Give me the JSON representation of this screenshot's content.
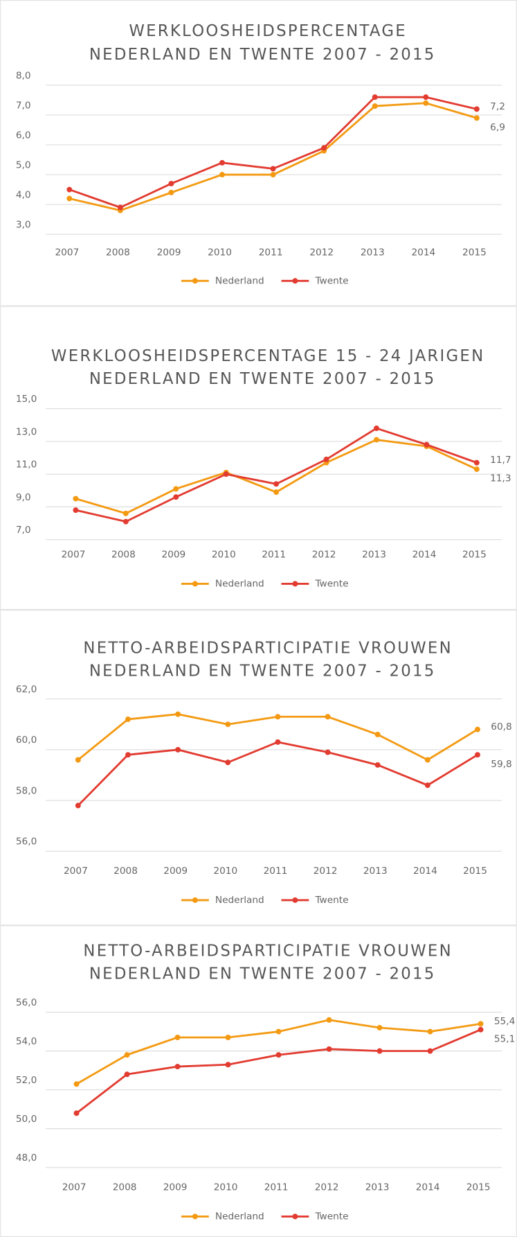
{
  "chart_data": [
    {
      "type": "line",
      "title": "WERKLOOSHEIDSPERCENTAGE",
      "subtitle": "NEDERLAND EN TWENTE 2007 - 2015",
      "categories": [
        "2007",
        "2008",
        "2009",
        "2010",
        "2011",
        "2012",
        "2013",
        "2014",
        "2015"
      ],
      "ylim": [
        3,
        8
      ],
      "yticks": [
        {
          "value": 3,
          "label": "3,0"
        },
        {
          "value": 4,
          "label": "4,0"
        },
        {
          "value": 5,
          "label": "5,0"
        },
        {
          "value": 6,
          "label": "6,0"
        },
        {
          "value": 7,
          "label": "7,0"
        },
        {
          "value": 8,
          "label": "8,0"
        }
      ],
      "grid": true,
      "legend": "bottom",
      "series": [
        {
          "name": "Nederland",
          "color": "#f39a12",
          "values": [
            4.2,
            3.8,
            4.4,
            5.0,
            5.0,
            5.8,
            7.3,
            7.4,
            6.9
          ],
          "value_labels": [
            null,
            null,
            null,
            null,
            null,
            null,
            null,
            null,
            "6,9"
          ]
        },
        {
          "name": "Twente",
          "color": "#e23b30",
          "values": [
            4.5,
            3.9,
            4.7,
            5.4,
            5.2,
            5.9,
            7.6,
            7.6,
            7.2
          ],
          "value_labels": [
            null,
            null,
            null,
            null,
            null,
            null,
            null,
            null,
            "7,2"
          ]
        }
      ]
    },
    {
      "type": "line",
      "title": "WERKLOOSHEIDSPERCENTAGE 15 - 24 JARIGEN",
      "subtitle": "NEDERLAND EN TWENTE 2007 - 2015",
      "categories": [
        "2007",
        "2008",
        "2009",
        "2010",
        "2011",
        "2012",
        "2013",
        "2014",
        "2015"
      ],
      "ylim": [
        7,
        15
      ],
      "yticks": [
        {
          "value": 7,
          "label": "7,0"
        },
        {
          "value": 9,
          "label": "9,0"
        },
        {
          "value": 11,
          "label": "11,0"
        },
        {
          "value": 13,
          "label": "13,0"
        },
        {
          "value": 15,
          "label": "15,0"
        }
      ],
      "grid": true,
      "legend": "bottom",
      "series": [
        {
          "name": "Nederland",
          "color": "#f39a12",
          "values": [
            9.5,
            8.6,
            10.1,
            11.1,
            9.9,
            11.7,
            13.1,
            12.7,
            11.3
          ],
          "value_labels": [
            null,
            null,
            null,
            null,
            null,
            null,
            null,
            null,
            "11,3"
          ]
        },
        {
          "name": "Twente",
          "color": "#e23b30",
          "values": [
            8.8,
            8.1,
            9.6,
            11.0,
            10.4,
            11.9,
            13.8,
            12.8,
            11.7
          ],
          "value_labels": [
            null,
            null,
            null,
            null,
            null,
            null,
            null,
            null,
            "11,7"
          ]
        }
      ]
    },
    {
      "type": "line",
      "title": "NETTO-ARBEIDSPARTICIPATIE VROUWEN",
      "subtitle": "NEDERLAND EN TWENTE 2007 - 2015",
      "categories": [
        "2007",
        "2008",
        "2009",
        "2010",
        "2011",
        "2012",
        "2013",
        "2014",
        "2015"
      ],
      "ylim": [
        56,
        62
      ],
      "yticks": [
        {
          "value": 56,
          "label": "56,0"
        },
        {
          "value": 58,
          "label": "58,0"
        },
        {
          "value": 60,
          "label": "60,0"
        },
        {
          "value": 62,
          "label": "62,0"
        }
      ],
      "grid": true,
      "legend": "bottom",
      "series": [
        {
          "name": "Nederland",
          "color": "#f39a12",
          "values": [
            59.6,
            61.2,
            61.4,
            61.0,
            61.3,
            61.3,
            60.6,
            59.6,
            60.8
          ],
          "value_labels": [
            null,
            null,
            null,
            null,
            null,
            null,
            null,
            null,
            "60,8"
          ]
        },
        {
          "name": "Twente",
          "color": "#e23b30",
          "values": [
            57.8,
            59.8,
            60.0,
            59.5,
            60.3,
            59.9,
            59.4,
            58.6,
            59.8
          ],
          "value_labels": [
            null,
            null,
            null,
            null,
            null,
            null,
            null,
            null,
            "59,8"
          ]
        }
      ]
    },
    {
      "type": "line",
      "title": "NETTO-ARBEIDSPARTICIPATIE VROUWEN",
      "subtitle": "NEDERLAND EN TWENTE 2007 - 2015",
      "categories": [
        "2007",
        "2008",
        "2009",
        "2010",
        "2011",
        "2012",
        "2013",
        "2014",
        "2015"
      ],
      "ylim": [
        48,
        56
      ],
      "yticks": [
        {
          "value": 48,
          "label": "48,0"
        },
        {
          "value": 50,
          "label": "50,0"
        },
        {
          "value": 52,
          "label": "52,0"
        },
        {
          "value": 54,
          "label": "54,0"
        },
        {
          "value": 56,
          "label": "56,0"
        }
      ],
      "grid": true,
      "legend": "bottom",
      "series": [
        {
          "name": "Nederland",
          "color": "#f39a12",
          "values": [
            52.3,
            53.8,
            54.7,
            54.7,
            55.0,
            55.6,
            55.2,
            55.0,
            55.4
          ],
          "value_labels": [
            null,
            null,
            null,
            null,
            null,
            null,
            null,
            null,
            "55,4"
          ]
        },
        {
          "name": "Twente",
          "color": "#e23b30",
          "values": [
            50.8,
            52.8,
            53.2,
            53.3,
            53.8,
            54.1,
            54.0,
            54.0,
            55.1
          ],
          "value_labels": [
            null,
            null,
            null,
            null,
            null,
            null,
            null,
            null,
            "55,1"
          ]
        }
      ]
    }
  ]
}
